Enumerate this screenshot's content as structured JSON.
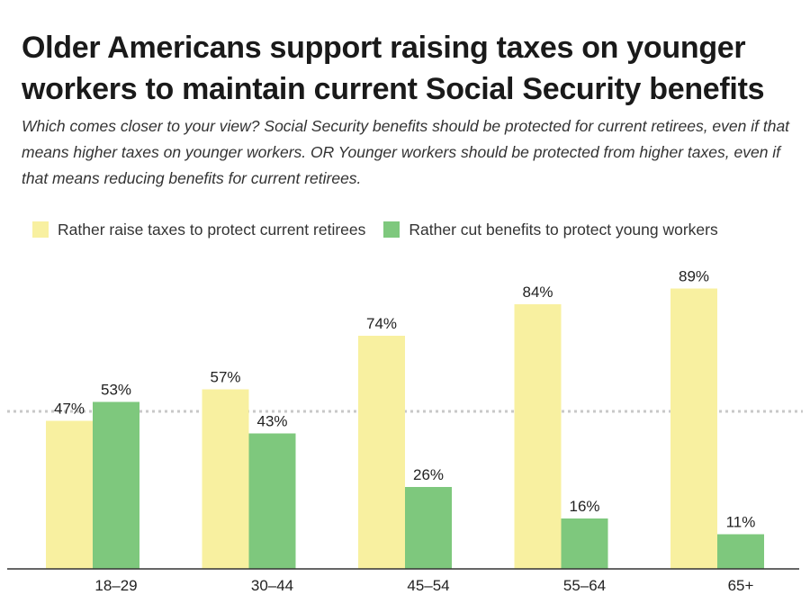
{
  "chart_data": {
    "type": "bar",
    "title": "Older Americans support raising taxes on younger workers to maintain current Social Security benefits",
    "subtitle": "Which comes closer to your view? Social Security benefits should be protected for current retirees, even if that means higher taxes on younger workers. OR Younger workers should be protected from higher taxes, even if that means reducing benefits for current retirees.",
    "categories": [
      "18–29",
      "30–44",
      "45–54",
      "55–64",
      "65+"
    ],
    "series": [
      {
        "name": "Rather raise taxes to protect current retirees",
        "values": [
          47,
          57,
          74,
          84,
          89
        ],
        "labels": [
          "47%",
          "57%",
          "74%",
          "84%",
          "89%"
        ],
        "color": "#f8f0a0"
      },
      {
        "name": "Rather cut benefits to protect young workers",
        "values": [
          53,
          43,
          26,
          16,
          11
        ],
        "labels": [
          "53%",
          "43%",
          "26%",
          "16%",
          "11%"
        ],
        "color": "#7ec87d"
      }
    ],
    "reference_line": {
      "value": 50,
      "style": "dotted",
      "color": "#c8c8c8"
    },
    "ylim": [
      0,
      100
    ],
    "xlabel": "",
    "ylabel": "",
    "grid": false,
    "legend_position": "top-left",
    "axis_color": "#333333"
  }
}
